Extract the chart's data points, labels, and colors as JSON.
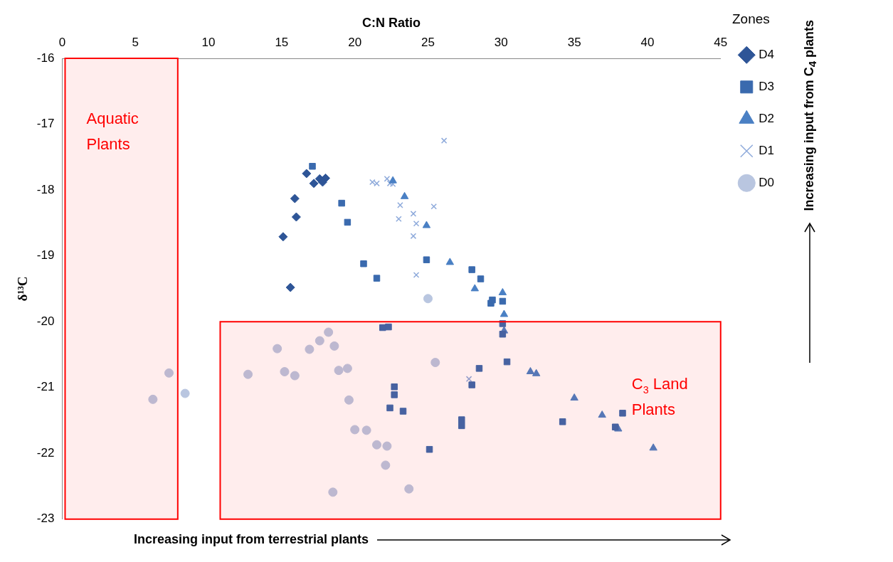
{
  "chart_data": {
    "type": "scatter",
    "xlabel": "C:N Ratio",
    "ylabel": "δ¹³C",
    "legend_title": "Zones",
    "legend": "right",
    "grid": false,
    "xlim": [
      0,
      45
    ],
    "xticks": [
      0,
      5,
      10,
      15,
      20,
      25,
      30,
      35,
      40,
      45
    ],
    "ylim": [
      -23,
      -16
    ],
    "yticks": [
      -16,
      -17,
      -18,
      -19,
      -20,
      -21,
      -22,
      -23
    ],
    "series": [
      {
        "name": "D4",
        "color": "#2e5597",
        "marker": "diamond",
        "x": [
          15.1,
          15.9,
          16.0,
          15.6,
          16.7,
          17.2,
          17.6,
          18.0,
          17.8
        ],
        "values": [
          -18.71,
          -18.13,
          -18.41,
          -19.48,
          -17.75,
          -17.9,
          -17.83,
          -17.82,
          -17.88
        ]
      },
      {
        "name": "D3",
        "color": "#3a6aae",
        "marker": "square",
        "x": [
          17.1,
          19.1,
          19.5,
          20.6,
          21.5,
          21.9,
          22.3,
          22.7,
          22.7,
          22.4,
          23.3,
          24.9,
          25.1,
          27.3,
          27.3,
          28.0,
          28.5,
          28.0,
          28.6,
          29.3,
          29.4,
          30.1,
          30.1,
          30.1,
          30.4,
          34.2,
          37.8,
          38.3
        ],
        "values": [
          -17.64,
          -18.2,
          -18.49,
          -19.12,
          -19.34,
          -20.09,
          -20.08,
          -20.99,
          -21.11,
          -21.31,
          -21.36,
          -19.06,
          -21.94,
          -21.49,
          -21.58,
          -20.96,
          -20.71,
          -19.21,
          -19.35,
          -19.72,
          -19.67,
          -19.69,
          -20.03,
          -20.19,
          -20.61,
          -21.52,
          -21.6,
          -21.39
        ]
      },
      {
        "name": "D2",
        "color": "#4a80c4",
        "marker": "triangle",
        "x": [
          22.6,
          23.4,
          24.9,
          26.5,
          28.2,
          30.1,
          30.2,
          30.2,
          32.0,
          32.4,
          35.0,
          36.9,
          38.0,
          40.4
        ],
        "values": [
          -17.86,
          -18.1,
          -18.54,
          -19.1,
          -19.5,
          -19.56,
          -19.89,
          -20.14,
          -20.76,
          -20.79,
          -21.16,
          -21.42,
          -21.63,
          -21.92
        ]
      },
      {
        "name": "D1",
        "color": "#8eaadb",
        "marker": "cross",
        "x": [
          26.1,
          21.2,
          21.5,
          22.2,
          22.4,
          22.6,
          23.1,
          23.0,
          24.0,
          24.2,
          24.0,
          25.4,
          24.2,
          27.8
        ],
        "values": [
          -17.25,
          -17.88,
          -17.9,
          -17.83,
          -17.9,
          -17.91,
          -18.23,
          -18.44,
          -18.36,
          -18.51,
          -18.7,
          -18.25,
          -19.29,
          -20.87
        ]
      },
      {
        "name": "D0",
        "color": "#b9c6e0",
        "marker": "circle",
        "x": [
          6.2,
          7.3,
          8.4,
          12.7,
          14.7,
          15.2,
          15.9,
          16.9,
          17.6,
          18.2,
          18.6,
          18.9,
          19.5,
          19.6,
          20.0,
          20.8,
          21.5,
          22.2,
          22.1,
          18.5,
          23.7,
          25.0,
          25.5
        ],
        "values": [
          -21.18,
          -20.78,
          -21.09,
          -20.8,
          -20.41,
          -20.76,
          -20.82,
          -20.42,
          -20.29,
          -20.16,
          -20.37,
          -20.74,
          -20.71,
          -21.19,
          -21.64,
          -21.65,
          -21.87,
          -21.89,
          -22.18,
          -22.59,
          -22.54,
          -19.65,
          -20.62
        ]
      }
    ],
    "bands": [
      {
        "axis": "x",
        "from": 0.2,
        "to": 7.9,
        "label": "Aquatic Plants",
        "color": "#ff0000"
      },
      {
        "axis": "y",
        "from": -20,
        "to": -23,
        "label": "C$_{3}$ Land Plants",
        "color": "#ff0000"
      }
    ],
    "annotations": [
      "Increasing input from terrestrial plants",
      "Increasing input from C$_{4}$ plants"
    ]
  }
}
